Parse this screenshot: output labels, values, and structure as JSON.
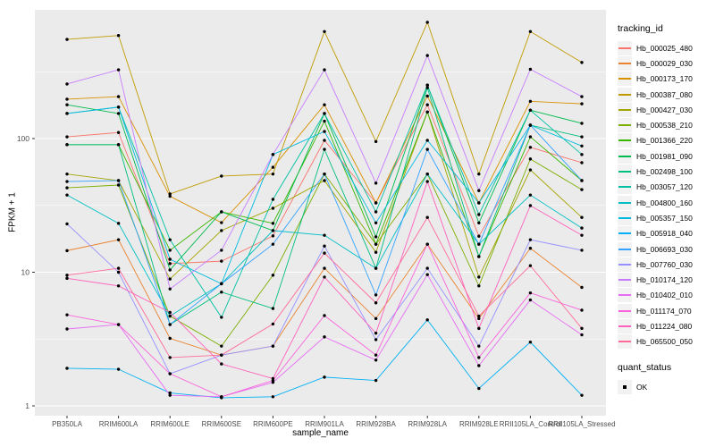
{
  "figure": {
    "background": "#ffffff",
    "panel_bg": "#EBEBEB",
    "grid_color": "#FFFFFF",
    "tick_text_color": "#4D4D4D",
    "point_color": "#000000"
  },
  "chart_data": {
    "type": "line",
    "title": "",
    "xlabel": "sample_name",
    "ylabel": "FPKM + 1",
    "y_scale": "log10",
    "ylim": [
      0.85,
      920
    ],
    "grid": true,
    "legend_position": "right",
    "legend_title": "tracking_id",
    "quant_legend": {
      "title": "quant_status",
      "label": "OK",
      "marker": "black-square"
    },
    "y_major_ticks": [
      1,
      10,
      100
    ],
    "y_major_tick_labels": [
      "1",
      "10",
      "100"
    ],
    "y_minor_ticks": [
      3.162,
      31.623,
      316.228
    ],
    "categories": [
      "PB350LA",
      "RRIM600LA",
      "RRIM600LE",
      "RRIM600SE",
      "RRIM600PE",
      "RRIM901LA",
      "RRIM928BA",
      "RRIM928LA",
      "RRIM928LE",
      "RRII105LA_Control",
      "RRII105LA_Stressed"
    ],
    "series": [
      {
        "name": "Hb_000025_480",
        "color": "#F8766D",
        "values": [
          103,
          111,
          11.6,
          12.1,
          18.7,
          97,
          33,
          179,
          18.6,
          86,
          66
        ]
      },
      {
        "name": "Hb_000029_030",
        "color": "#EA8331",
        "values": [
          14.5,
          17.5,
          3.2,
          2.4,
          2.8,
          10.7,
          4.5,
          16.2,
          4.5,
          15.1,
          7.7
        ]
      },
      {
        "name": "Hb_000173_170",
        "color": "#D89000",
        "values": [
          197,
          206,
          37,
          23.5,
          61,
          179,
          33,
          208,
          33,
          190,
          182
        ]
      },
      {
        "name": "Hb_000387_080",
        "color": "#C09B00",
        "values": [
          552,
          590,
          38.5,
          52.4,
          54.3,
          632,
          95,
          741,
          54.3,
          632,
          371
        ]
      },
      {
        "name": "Hb_000427_030",
        "color": "#A3A500",
        "values": [
          54.3,
          48.5,
          8.9,
          20.5,
          30.1,
          48.5,
          14.1,
          158,
          9.2,
          58.3,
          25.7
        ]
      },
      {
        "name": "Hb_000538_210",
        "color": "#7CAE00",
        "values": [
          42.8,
          44.9,
          4.7,
          2.8,
          9.5,
          54.3,
          16.2,
          54.3,
          7.9,
          70.3,
          41.5
        ]
      },
      {
        "name": "Hb_001366_220",
        "color": "#39B600",
        "values": [
          90,
          90,
          14.6,
          28.3,
          23.2,
          135,
          16.2,
          158,
          13.1,
          103,
          48.5
        ]
      },
      {
        "name": "Hb_001981_090",
        "color": "#00BB4E",
        "values": [
          179,
          154,
          10.4,
          28.3,
          20.5,
          154,
          18.4,
          251,
          23.4,
          163,
          130
        ]
      },
      {
        "name": "Hb_002498_100",
        "color": "#00BF7D",
        "values": [
          90,
          90,
          4.06,
          7.1,
          5.35,
          83,
          10.7,
          240,
          13.1,
          126,
          103
        ]
      },
      {
        "name": "Hb_003057_120",
        "color": "#00C1A3",
        "values": [
          154,
          172,
          17.5,
          4.6,
          35.1,
          154,
          28.3,
          251,
          27,
          163,
          76
        ]
      },
      {
        "name": "Hb_004800_160",
        "color": "#00BFC4",
        "values": [
          37.8,
          23.2,
          4.7,
          8.2,
          20.5,
          18.9,
          10.7,
          54.3,
          16.2,
          37.8,
          21.4
        ]
      },
      {
        "name": "Hb_005357_150",
        "color": "#00BAE0",
        "values": [
          154,
          172,
          12.5,
          8.2,
          76,
          113,
          23.4,
          97,
          33,
          126,
          88
        ]
      },
      {
        "name": "Hb_005918_040",
        "color": "#00B0F6",
        "values": [
          1.91,
          1.88,
          1.25,
          1.15,
          1.17,
          1.64,
          1.55,
          4.4,
          1.35,
          3.0,
          1.2
        ]
      },
      {
        "name": "Hb_006693_030",
        "color": "#35A2FF",
        "values": [
          47.7,
          48.5,
          4.06,
          8.2,
          16.2,
          54.3,
          6.76,
          83,
          16.2,
          126,
          48.5
        ]
      },
      {
        "name": "Hb_007760_030",
        "color": "#9590FF",
        "values": [
          23,
          10,
          1.74,
          2.4,
          2.8,
          15.7,
          3.13,
          10.7,
          2.8,
          17.5,
          14.6
        ]
      },
      {
        "name": "Hb_010174_120",
        "color": "#C77CFF",
        "values": [
          256,
          327,
          7.5,
          14.6,
          76,
          327,
          46.4,
          418,
          40.8,
          330,
          206
        ]
      },
      {
        "name": "Hb_010402_010",
        "color": "#E76BF3",
        "values": [
          3.76,
          4.06,
          1.2,
          1.17,
          1.5,
          3.28,
          2.2,
          9.6,
          2.0,
          6.2,
          3.4
        ]
      },
      {
        "name": "Hb_011174_070",
        "color": "#FA62DB",
        "values": [
          4.8,
          4.06,
          1.74,
          1.17,
          1.55,
          4.74,
          2.4,
          16.2,
          2.3,
          7.0,
          5.2
        ]
      },
      {
        "name": "Hb_011224_080",
        "color": "#FF62BC",
        "values": [
          9.0,
          7.9,
          5.0,
          2.06,
          1.6,
          9.2,
          3.5,
          47.7,
          3.8,
          31.5,
          18.9
        ]
      },
      {
        "name": "Hb_065500_050",
        "color": "#FF6A98",
        "values": [
          9.5,
          10.7,
          2.3,
          2.4,
          4.1,
          13.9,
          5.9,
          25.7,
          4.7,
          11.2,
          3.8
        ]
      }
    ]
  }
}
